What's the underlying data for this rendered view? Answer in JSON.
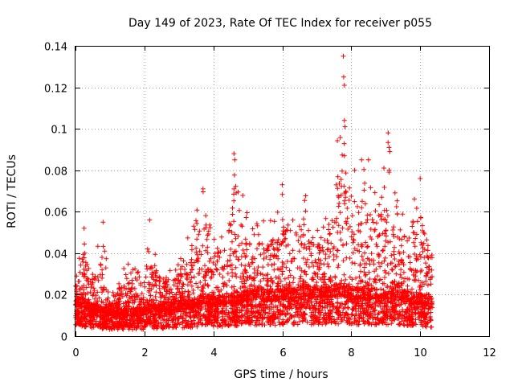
{
  "chart_data": {
    "type": "scatter",
    "title": "Day 149 of 2023, Rate Of TEC Index for receiver p055",
    "xlabel": "GPS time / hours",
    "ylabel": "ROTI / TECUs",
    "xlim": [
      0,
      12
    ],
    "ylim": [
      0,
      0.14
    ],
    "xticks": [
      "0",
      "2",
      "4",
      "6",
      "8",
      "10",
      "12"
    ],
    "yticks": [
      "0",
      "0.02",
      "0.04",
      "0.06",
      "0.08",
      "0.1",
      "0.12",
      "0.14"
    ],
    "grid": true,
    "marker": "+",
    "series": [
      {
        "name": "p055",
        "color": "#ff0000",
        "x_range": [
          0,
          10.35
        ],
        "envelope": [
          {
            "x": 0.0,
            "base": 0.015,
            "upper": 0.03
          },
          {
            "x": 0.25,
            "base": 0.014,
            "upper": 0.052
          },
          {
            "x": 0.5,
            "base": 0.012,
            "upper": 0.032
          },
          {
            "x": 0.8,
            "base": 0.011,
            "upper": 0.055
          },
          {
            "x": 1.0,
            "base": 0.01,
            "upper": 0.02
          },
          {
            "x": 1.5,
            "base": 0.01,
            "upper": 0.036
          },
          {
            "x": 2.0,
            "base": 0.011,
            "upper": 0.032
          },
          {
            "x": 2.15,
            "base": 0.012,
            "upper": 0.056
          },
          {
            "x": 2.5,
            "base": 0.012,
            "upper": 0.03
          },
          {
            "x": 3.0,
            "base": 0.013,
            "upper": 0.035
          },
          {
            "x": 3.5,
            "base": 0.014,
            "upper": 0.062
          },
          {
            "x": 3.7,
            "base": 0.016,
            "upper": 0.071
          },
          {
            "x": 4.0,
            "base": 0.015,
            "upper": 0.055
          },
          {
            "x": 4.3,
            "base": 0.015,
            "upper": 0.05
          },
          {
            "x": 4.6,
            "base": 0.016,
            "upper": 0.088
          },
          {
            "x": 5.0,
            "base": 0.017,
            "upper": 0.06
          },
          {
            "x": 5.3,
            "base": 0.018,
            "upper": 0.068
          },
          {
            "x": 5.7,
            "base": 0.017,
            "upper": 0.055
          },
          {
            "x": 6.0,
            "base": 0.018,
            "upper": 0.073
          },
          {
            "x": 6.3,
            "base": 0.018,
            "upper": 0.06
          },
          {
            "x": 6.7,
            "base": 0.019,
            "upper": 0.069
          },
          {
            "x": 7.0,
            "base": 0.018,
            "upper": 0.055
          },
          {
            "x": 7.4,
            "base": 0.019,
            "upper": 0.06
          },
          {
            "x": 7.75,
            "base": 0.02,
            "upper": 0.136
          },
          {
            "x": 8.0,
            "base": 0.018,
            "upper": 0.08
          },
          {
            "x": 8.3,
            "base": 0.018,
            "upper": 0.085
          },
          {
            "x": 8.6,
            "base": 0.018,
            "upper": 0.07
          },
          {
            "x": 9.1,
            "base": 0.018,
            "upper": 0.098
          },
          {
            "x": 9.5,
            "base": 0.017,
            "upper": 0.06
          },
          {
            "x": 10.0,
            "base": 0.016,
            "upper": 0.076
          },
          {
            "x": 10.35,
            "base": 0.014,
            "upper": 0.045
          }
        ],
        "notable_points": [
          {
            "x": 7.77,
            "y": 0.135
          },
          {
            "x": 7.78,
            "y": 0.125
          },
          {
            "x": 7.8,
            "y": 0.121
          },
          {
            "x": 7.8,
            "y": 0.104
          },
          {
            "x": 7.82,
            "y": 0.101
          },
          {
            "x": 7.8,
            "y": 0.087
          },
          {
            "x": 9.07,
            "y": 0.098
          },
          {
            "x": 9.1,
            "y": 0.091
          },
          {
            "x": 9.12,
            "y": 0.089
          },
          {
            "x": 9.1,
            "y": 0.08
          },
          {
            "x": 4.6,
            "y": 0.088
          },
          {
            "x": 4.62,
            "y": 0.085
          },
          {
            "x": 4.6,
            "y": 0.071
          },
          {
            "x": 8.3,
            "y": 0.085
          },
          {
            "x": 8.5,
            "y": 0.085
          },
          {
            "x": 8.1,
            "y": 0.08
          },
          {
            "x": 10.0,
            "y": 0.076
          },
          {
            "x": 6.0,
            "y": 0.073
          },
          {
            "x": 3.7,
            "y": 0.071
          },
          {
            "x": 0.25,
            "y": 0.052
          },
          {
            "x": 0.8,
            "y": 0.055
          },
          {
            "x": 2.15,
            "y": 0.056
          }
        ]
      }
    ]
  }
}
